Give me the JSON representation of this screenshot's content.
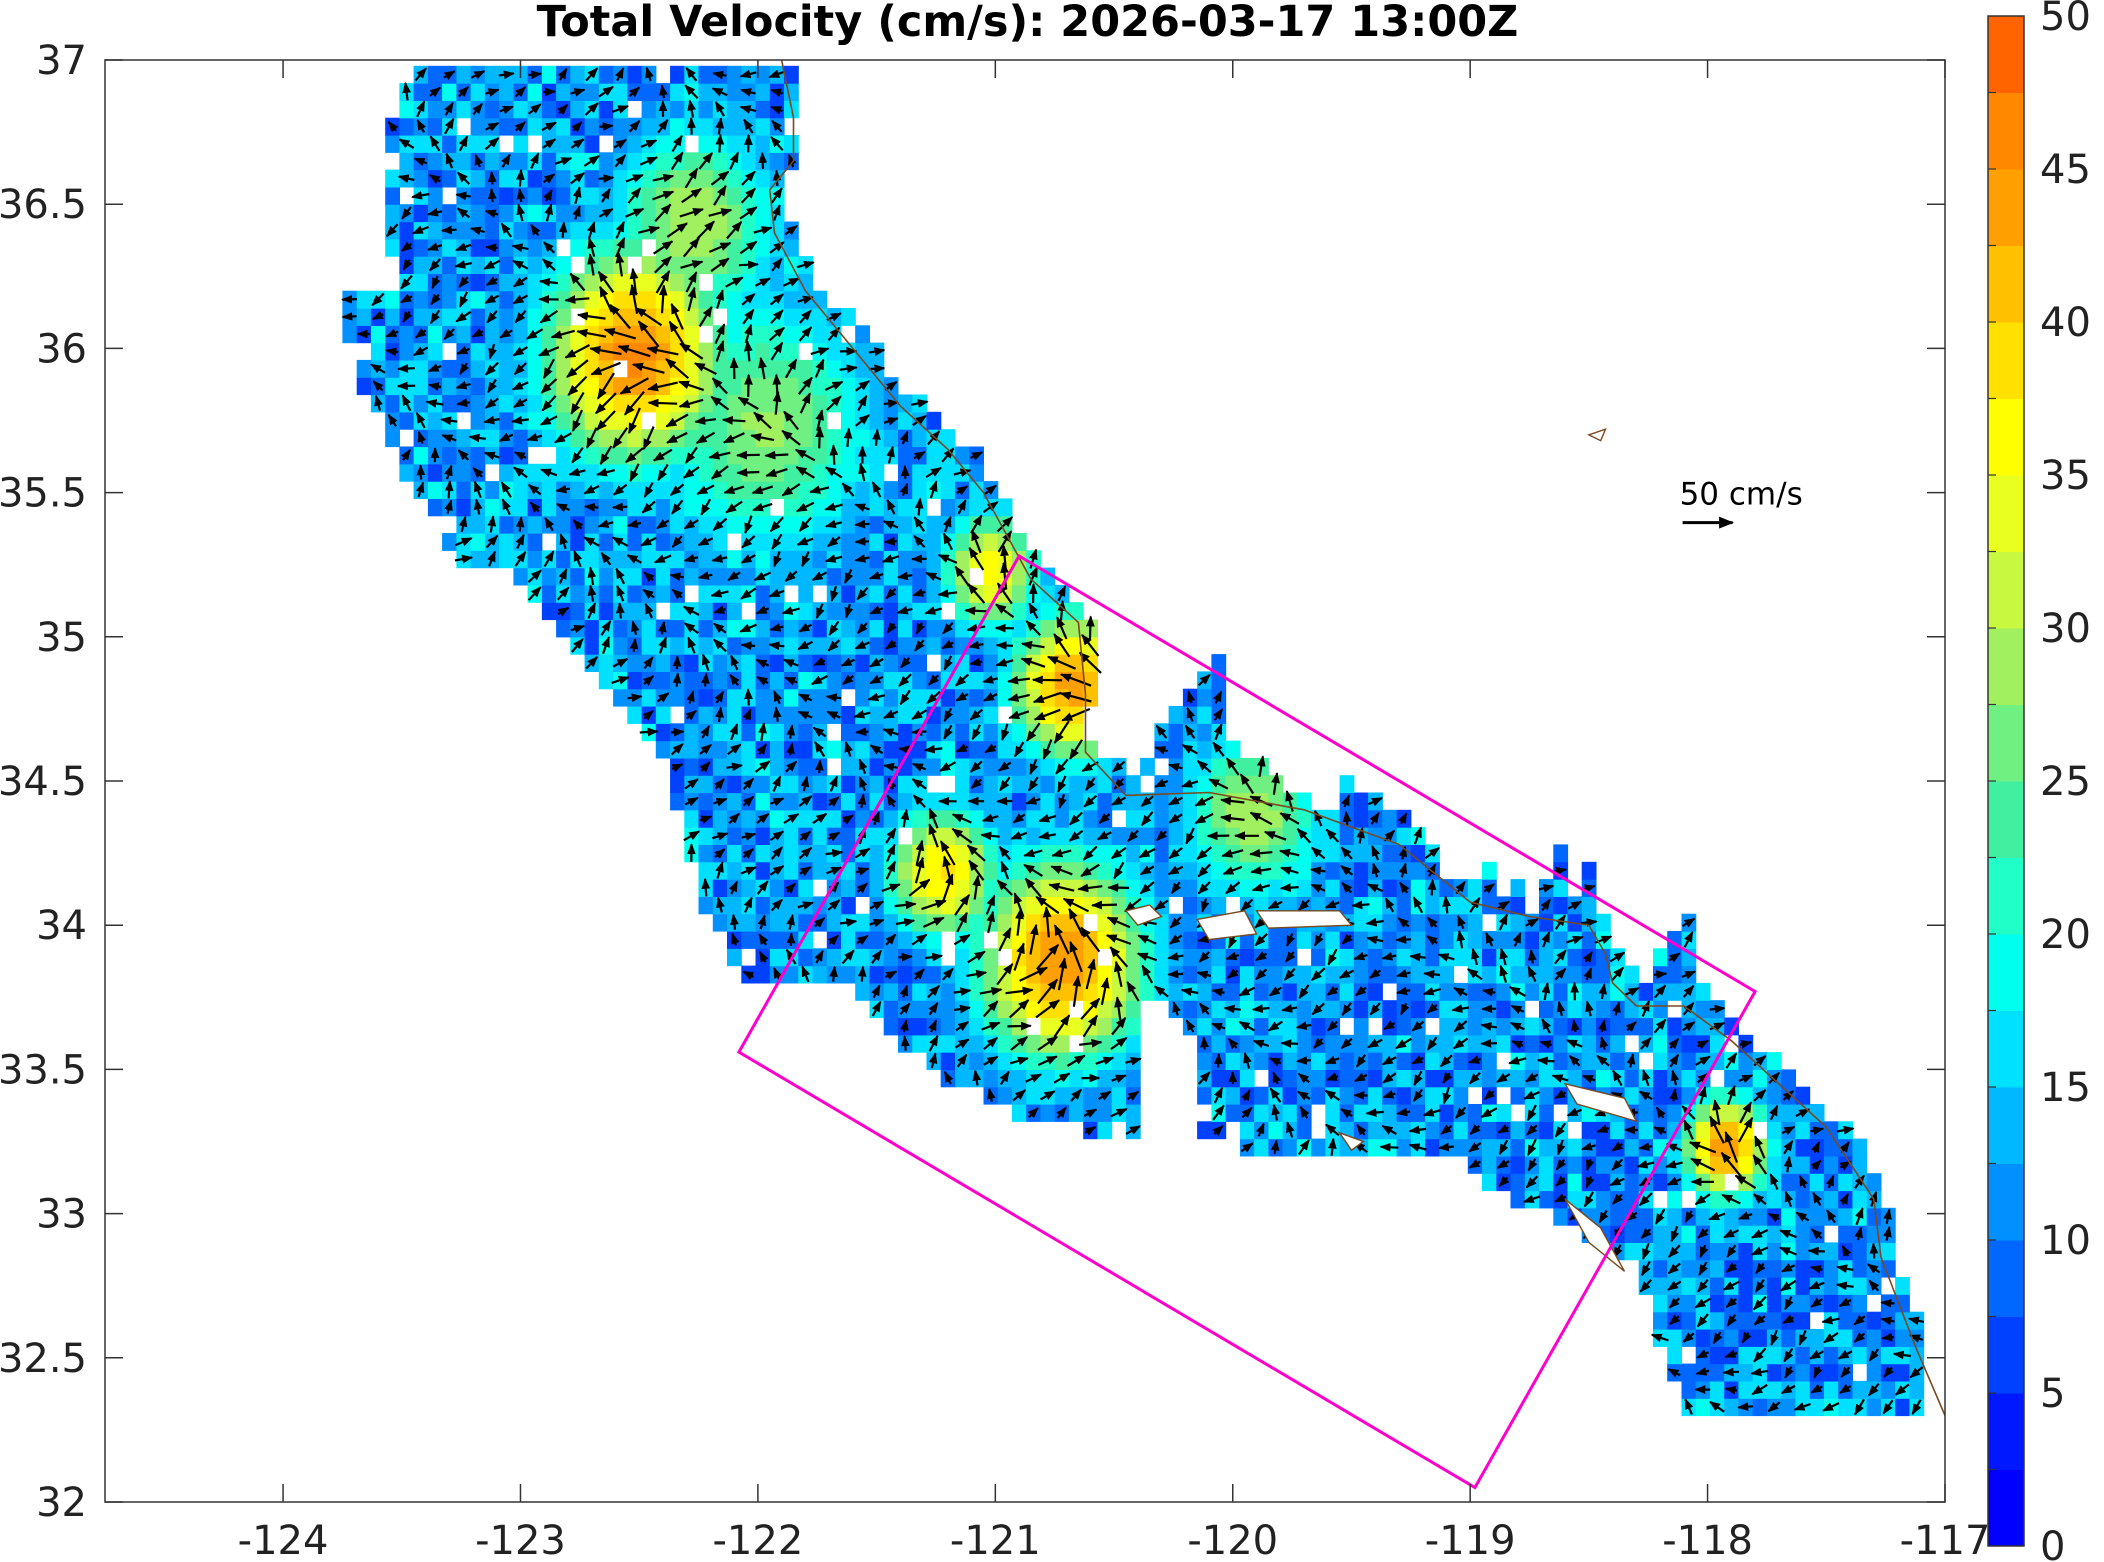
{
  "title": "Total Velocity (cm/s): 2026-03-17 13:00Z",
  "map": {
    "xlim": [
      -124.75,
      -117
    ],
    "ylim": [
      32,
      37
    ],
    "x_ticks": [
      {
        "value": -124,
        "label": "-124"
      },
      {
        "value": -123,
        "label": "-123"
      },
      {
        "value": -122,
        "label": "-122"
      },
      {
        "value": -121,
        "label": "-121"
      },
      {
        "value": -120,
        "label": "-120"
      },
      {
        "value": -119,
        "label": "-119"
      },
      {
        "value": -118,
        "label": "-118"
      },
      {
        "value": -117,
        "label": "-117"
      }
    ],
    "y_ticks": [
      {
        "value": 32,
        "label": "32"
      },
      {
        "value": 32.5,
        "label": "32.5"
      },
      {
        "value": 33,
        "label": "33"
      },
      {
        "value": 33.5,
        "label": "33.5"
      },
      {
        "value": 34,
        "label": "34"
      },
      {
        "value": 34.5,
        "label": "34.5"
      },
      {
        "value": 35,
        "label": "35"
      },
      {
        "value": 35.5,
        "label": "35.5"
      },
      {
        "value": 36,
        "label": "36"
      },
      {
        "value": 36.5,
        "label": "36.5"
      },
      {
        "value": 37,
        "label": "37"
      }
    ],
    "coastline_color": "#7a4a1e",
    "study_box": {
      "color": "#ff00cc",
      "corners": [
        [
          -120.9,
          35.28
        ],
        [
          -117.8,
          33.77
        ],
        [
          -118.98,
          32.05
        ],
        [
          -122.08,
          33.56
        ]
      ]
    },
    "scale_arrow": {
      "label": "50 cm/s",
      "lon": -118,
      "lat": 35.5
    }
  },
  "colorbar": {
    "min": 0,
    "max": 50,
    "step": 5,
    "labels": [
      {
        "value": 0,
        "label": "0"
      },
      {
        "value": 5,
        "label": "5"
      },
      {
        "value": 10,
        "label": "10"
      },
      {
        "value": 15,
        "label": "15"
      },
      {
        "value": 20,
        "label": "20"
      },
      {
        "value": 25,
        "label": "25"
      },
      {
        "value": 30,
        "label": "30"
      },
      {
        "value": 35,
        "label": "35"
      },
      {
        "value": 40,
        "label": "40"
      },
      {
        "value": 45,
        "label": "45"
      },
      {
        "value": 50,
        "label": "50"
      }
    ],
    "colors": [
      "#0000ff",
      "#0018ff",
      "#0040ff",
      "#0068ff",
      "#0090ff",
      "#00b8ff",
      "#00e0ff",
      "#00ffee",
      "#20ffc8",
      "#40f0a0",
      "#70f080",
      "#a0f060",
      "#c8f840",
      "#e8ff20",
      "#ffff00",
      "#ffe000",
      "#ffc000",
      "#ffa000",
      "#ff8800",
      "#ff6400"
    ]
  }
}
